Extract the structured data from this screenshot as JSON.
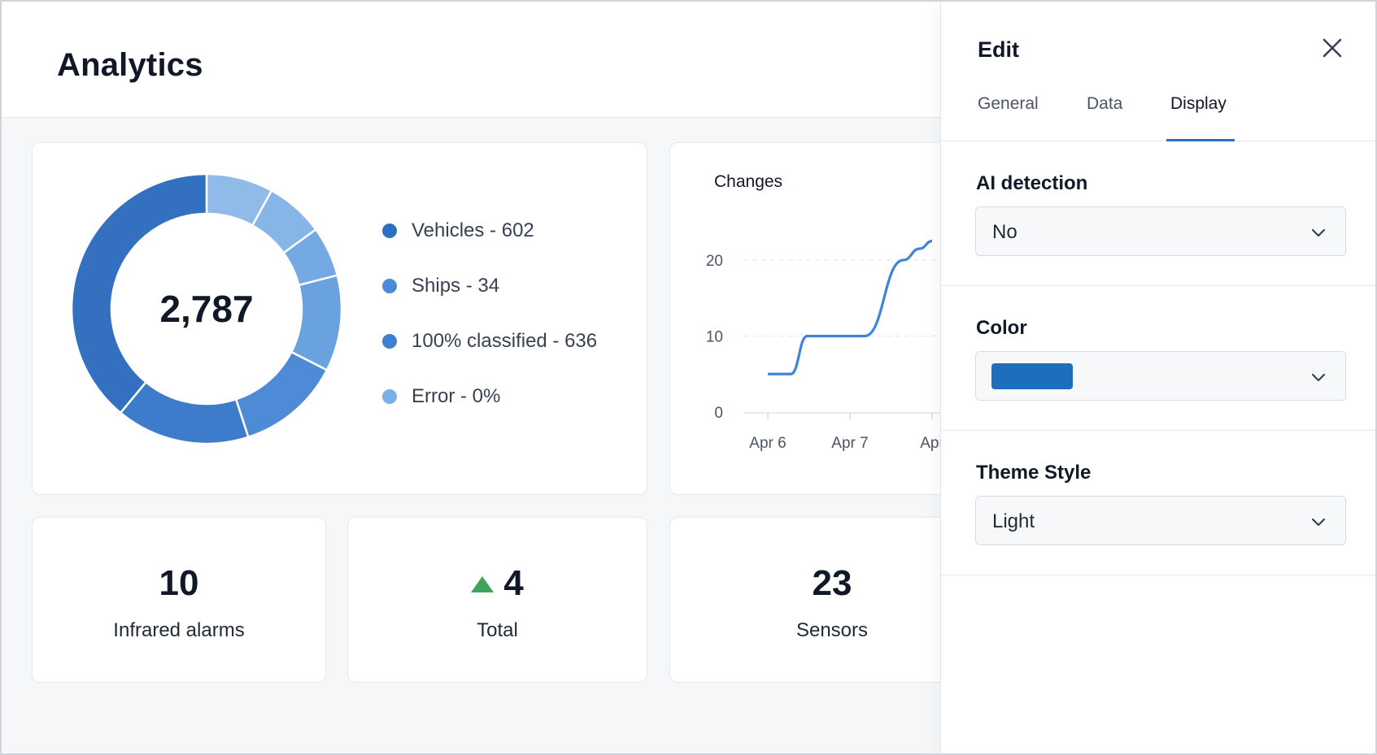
{
  "header": {
    "title": "Analytics"
  },
  "donut": {
    "total": "2,787",
    "legend": [
      {
        "label": "Vehicles - 602",
        "color": "#2f6fc0"
      },
      {
        "label": "Ships - 34",
        "color": "#4c8ad8"
      },
      {
        "label": "100% classified - 636",
        "color": "#3e7fd0"
      },
      {
        "label": "Error - 0%",
        "color": "#7aaee6"
      }
    ],
    "segments": [
      {
        "value": 8,
        "color": "#90bbe9"
      },
      {
        "value": 7,
        "color": "#86b5e7"
      },
      {
        "value": 6,
        "color": "#74a9e3"
      },
      {
        "value": 11.5,
        "color": "#6aa2e0"
      },
      {
        "value": 12.5,
        "color": "#4d8bd6"
      },
      {
        "value": 16,
        "color": "#3d7ccb"
      },
      {
        "value": 39,
        "color": "#3470c0"
      }
    ]
  },
  "chart_data": {
    "type": "line",
    "title": "Changes",
    "xlabel": "",
    "ylabel": "",
    "ylim": [
      0,
      20
    ],
    "y_ticks": [
      "20",
      "10",
      "0"
    ],
    "x_ticks": [
      "Apr 6",
      "Apr 7",
      "Apr"
    ],
    "grid": true,
    "series": [
      {
        "x": [
          0,
          0.28,
          0.48,
          1.0,
          1.18,
          1.65,
          1.85,
          2.0
        ],
        "y": [
          5,
          5,
          10,
          10,
          10,
          20,
          21.5,
          22.5
        ]
      }
    ],
    "color": "#3f84d8"
  },
  "kpis": [
    {
      "value": "10",
      "label": "Infrared alarms",
      "trend": ""
    },
    {
      "value": "4",
      "label": "Total",
      "trend": "up"
    },
    {
      "value": "23",
      "label": "Sensors",
      "trend": ""
    }
  ],
  "panel": {
    "title": "Edit",
    "tabs": [
      "General",
      "Data",
      "Display"
    ],
    "active_tab": "Display",
    "ai_detection": {
      "label": "AI detection",
      "value": "No"
    },
    "color": {
      "label": "Color",
      "value": "#1f6dbd"
    },
    "theme": {
      "label": "Theme Style",
      "value": "Light"
    }
  }
}
